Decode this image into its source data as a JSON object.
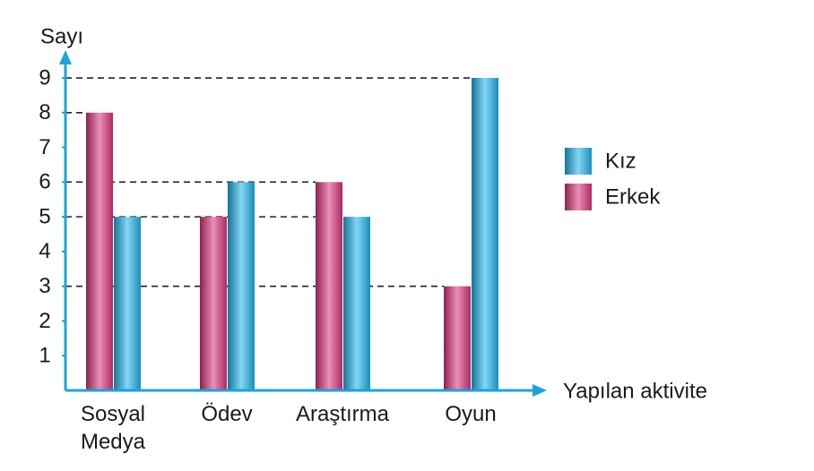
{
  "chart_data": {
    "type": "bar",
    "y_label": "Sayı",
    "x_label": "Yapılan aktivite",
    "categories": [
      "Sosyal Medya",
      "Ödev",
      "Araştırma",
      "Oyun"
    ],
    "series": [
      {
        "name": "Erkek",
        "color": "#d9337a",
        "values": [
          8,
          5,
          6,
          3
        ]
      },
      {
        "name": "Kız",
        "color": "#1fb3ea",
        "values": [
          5,
          6,
          5,
          9
        ]
      }
    ],
    "ylim": [
      0,
      9.8
    ],
    "yticks": [
      1,
      2,
      3,
      4,
      5,
      6,
      7,
      8,
      9
    ],
    "legend": "right"
  }
}
